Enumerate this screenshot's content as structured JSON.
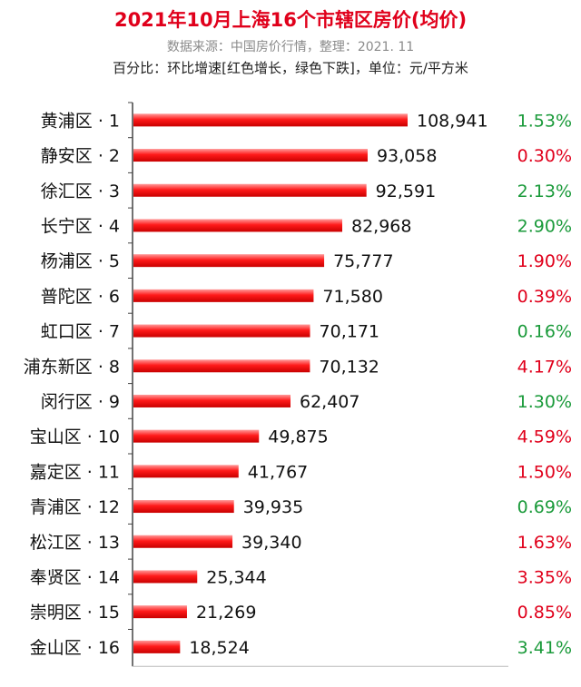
{
  "header": {
    "title": "2021年10月上海16个市辖区房价(均价)",
    "source": "数据来源：中国房价行情，整理：2021. 11",
    "note": "百分比：环比增速[红色增长，绿色下跌]，单位：元/平方米"
  },
  "colors": {
    "bar": "#ff1a1a",
    "increase": "#e0001b",
    "decrease": "#1a9a3a",
    "title": "#e0001b"
  },
  "chart_data": {
    "type": "bar",
    "orientation": "horizontal",
    "categories": [
      "黄浦区 · 1",
      "静安区 · 2",
      "徐汇区 · 3",
      "长宁区 · 4",
      "杨浦区 · 5",
      "普陀区 · 6",
      "虹口区 · 7",
      "浦东新区 · 8",
      "闵行区 · 9",
      "宝山区 · 10",
      "嘉定区 · 11",
      "青浦区 · 12",
      "松江区 · 13",
      "奉贤区 · 14",
      "崇明区 · 15",
      "金山区 · 16"
    ],
    "values": [
      108941,
      93058,
      92591,
      82968,
      75777,
      71580,
      70171,
      70132,
      62407,
      49875,
      41767,
      39935,
      39340,
      25344,
      21269,
      18524
    ],
    "value_labels": [
      "108,941",
      "93,058",
      "92,591",
      "82,968",
      "75,777",
      "71,580",
      "70,171",
      "70,132",
      "62,407",
      "49,875",
      "41,767",
      "39,935",
      "39,340",
      "25,344",
      "21,269",
      "18,524"
    ],
    "mom_growth_labels": [
      "1.53%",
      "0.30%",
      "2.13%",
      "2.90%",
      "1.90%",
      "0.39%",
      "0.16%",
      "4.17%",
      "1.30%",
      "4.59%",
      "1.50%",
      "0.69%",
      "1.63%",
      "3.35%",
      "0.85%",
      "3.41%"
    ],
    "mom_growth_colors": [
      "decrease",
      "increase",
      "decrease",
      "decrease",
      "increase",
      "increase",
      "decrease",
      "increase",
      "decrease",
      "increase",
      "increase",
      "decrease",
      "increase",
      "increase",
      "increase",
      "decrease"
    ],
    "xlim": [
      0,
      108941
    ],
    "grid": false,
    "title": "2021年10月上海16个市辖区房价(均价)"
  }
}
